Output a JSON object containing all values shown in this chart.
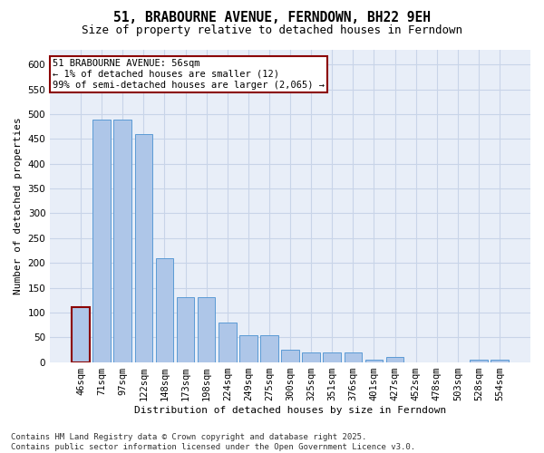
{
  "title": "51, BRABOURNE AVENUE, FERNDOWN, BH22 9EH",
  "subtitle": "Size of property relative to detached houses in Ferndown",
  "xlabel": "Distribution of detached houses by size in Ferndown",
  "ylabel": "Number of detached properties",
  "categories": [
    "46sqm",
    "71sqm",
    "97sqm",
    "122sqm",
    "148sqm",
    "173sqm",
    "198sqm",
    "224sqm",
    "249sqm",
    "275sqm",
    "300sqm",
    "325sqm",
    "351sqm",
    "376sqm",
    "401sqm",
    "427sqm",
    "452sqm",
    "478sqm",
    "503sqm",
    "528sqm",
    "554sqm"
  ],
  "values": [
    110,
    490,
    490,
    460,
    210,
    130,
    130,
    80,
    55,
    55,
    25,
    20,
    20,
    20,
    5,
    10,
    0,
    0,
    0,
    5,
    5
  ],
  "bar_color": "#aec6e8",
  "bar_edge_color": "#5b9bd5",
  "highlight_bar_index": 0,
  "highlight_edge_color": "#8b0000",
  "ylim": [
    0,
    630
  ],
  "yticks": [
    0,
    50,
    100,
    150,
    200,
    250,
    300,
    350,
    400,
    450,
    500,
    550,
    600
  ],
  "grid_color": "#c8d4e8",
  "background_color": "#e8eef8",
  "annotation_text": "51 BRABOURNE AVENUE: 56sqm\n← 1% of detached houses are smaller (12)\n99% of semi-detached houses are larger (2,065) →",
  "footer_text": "Contains HM Land Registry data © Crown copyright and database right 2025.\nContains public sector information licensed under the Open Government Licence v3.0.",
  "title_fontsize": 10.5,
  "subtitle_fontsize": 9,
  "axis_label_fontsize": 8,
  "tick_fontsize": 7.5,
  "annotation_fontsize": 7.5,
  "footer_fontsize": 6.5
}
